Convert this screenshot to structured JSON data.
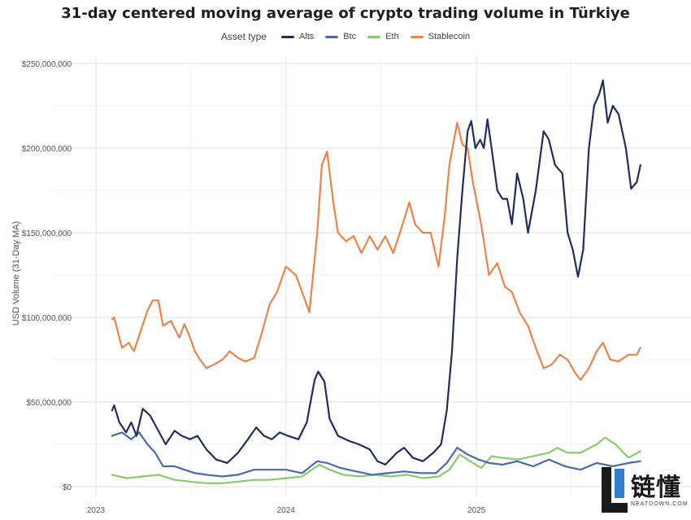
{
  "chart_data": {
    "type": "line",
    "title": "31-day centered moving average of crypto trading volume in Türkiye",
    "xlabel": "",
    "ylabel": "USD Volume (31-Day MA)",
    "legend": {
      "title": "Asset type",
      "placement": "top"
    },
    "x_ticks": [
      "2023",
      "2024",
      "2025"
    ],
    "y_ticks": [
      "$0",
      "$50,000,000",
      "$100,000,000",
      "$150,000,000",
      "$200,000,000",
      "$250,000,000"
    ],
    "ylim": [
      0,
      250000000
    ],
    "grid": true,
    "series": [
      {
        "name": "Alts",
        "color": "#1f2e5e",
        "points": [
          [
            "2023-02-01",
            45
          ],
          [
            "2023-02-05",
            48
          ],
          [
            "2023-02-15",
            38
          ],
          [
            "2023-02-28",
            32
          ],
          [
            "2023-03-10",
            38
          ],
          [
            "2023-03-20",
            30
          ],
          [
            "2023-04-01",
            46
          ],
          [
            "2023-04-15",
            42
          ],
          [
            "2023-05-01",
            33
          ],
          [
            "2023-05-15",
            25
          ],
          [
            "2023-06-01",
            33
          ],
          [
            "2023-06-15",
            30
          ],
          [
            "2023-07-01",
            28
          ],
          [
            "2023-07-15",
            30
          ],
          [
            "2023-08-01",
            22
          ],
          [
            "2023-08-20",
            16
          ],
          [
            "2023-09-10",
            14
          ],
          [
            "2023-10-01",
            20
          ],
          [
            "2023-10-20",
            28
          ],
          [
            "2023-11-05",
            35
          ],
          [
            "2023-11-20",
            30
          ],
          [
            "2023-12-05",
            28
          ],
          [
            "2023-12-20",
            32
          ],
          [
            "2024-01-05",
            30
          ],
          [
            "2024-01-25",
            28
          ],
          [
            "2024-02-10",
            38
          ],
          [
            "2024-02-25",
            63
          ],
          [
            "2024-03-03",
            68
          ],
          [
            "2024-03-15",
            62
          ],
          [
            "2024-03-25",
            40
          ],
          [
            "2024-04-10",
            30
          ],
          [
            "2024-05-01",
            27
          ],
          [
            "2024-05-20",
            25
          ],
          [
            "2024-06-10",
            22
          ],
          [
            "2024-06-25",
            15
          ],
          [
            "2024-07-10",
            13
          ],
          [
            "2024-08-01",
            20
          ],
          [
            "2024-08-15",
            23
          ],
          [
            "2024-09-01",
            17
          ],
          [
            "2024-09-20",
            15
          ],
          [
            "2024-10-10",
            20
          ],
          [
            "2024-10-25",
            25
          ],
          [
            "2024-11-05",
            45
          ],
          [
            "2024-11-15",
            80
          ],
          [
            "2024-11-25",
            135
          ],
          [
            "2024-12-05",
            175
          ],
          [
            "2024-12-15",
            210
          ],
          [
            "2024-12-22",
            216
          ],
          [
            "2024-12-30",
            200
          ],
          [
            "2025-01-08",
            205
          ],
          [
            "2025-01-15",
            200
          ],
          [
            "2025-01-22",
            217
          ],
          [
            "2025-01-30",
            200
          ],
          [
            "2025-02-10",
            175
          ],
          [
            "2025-02-20",
            170
          ],
          [
            "2025-03-01",
            170
          ],
          [
            "2025-03-10",
            155
          ],
          [
            "2025-03-20",
            185
          ],
          [
            "2025-04-01",
            170
          ],
          [
            "2025-04-10",
            150
          ],
          [
            "2025-04-25",
            175
          ],
          [
            "2025-05-10",
            210
          ],
          [
            "2025-05-20",
            205
          ],
          [
            "2025-06-01",
            190
          ],
          [
            "2025-06-15",
            185
          ],
          [
            "2025-06-25",
            150
          ],
          [
            "2025-07-05",
            140
          ],
          [
            "2025-07-15",
            124
          ],
          [
            "2025-07-25",
            140
          ],
          [
            "2025-08-05",
            200
          ],
          [
            "2025-08-15",
            225
          ],
          [
            "2025-08-25",
            232
          ],
          [
            "2025-09-01",
            240
          ],
          [
            "2025-09-10",
            215
          ],
          [
            "2025-09-20",
            225
          ],
          [
            "2025-10-01",
            220
          ],
          [
            "2025-10-15",
            200
          ],
          [
            "2025-10-25",
            176
          ],
          [
            "2025-11-05",
            180
          ],
          [
            "2025-11-12",
            190
          ]
        ]
      },
      {
        "name": "Btc",
        "color": "#4a6aaa",
        "points": [
          [
            "2023-02-01",
            30
          ],
          [
            "2023-02-20",
            32
          ],
          [
            "2023-03-10",
            28
          ],
          [
            "2023-03-25",
            32
          ],
          [
            "2023-04-10",
            25
          ],
          [
            "2023-04-25",
            20
          ],
          [
            "2023-05-10",
            12
          ],
          [
            "2023-06-01",
            12
          ],
          [
            "2023-06-20",
            10
          ],
          [
            "2023-07-10",
            8
          ],
          [
            "2023-08-01",
            7
          ],
          [
            "2023-09-01",
            6
          ],
          [
            "2023-10-01",
            7
          ],
          [
            "2023-11-01",
            10
          ],
          [
            "2023-12-01",
            10
          ],
          [
            "2024-01-01",
            10
          ],
          [
            "2024-02-01",
            8
          ],
          [
            "2024-03-01",
            15
          ],
          [
            "2024-03-20",
            14
          ],
          [
            "2024-04-15",
            11
          ],
          [
            "2024-05-15",
            9
          ],
          [
            "2024-06-15",
            7
          ],
          [
            "2024-07-15",
            8
          ],
          [
            "2024-08-15",
            9
          ],
          [
            "2024-09-15",
            8
          ],
          [
            "2024-10-15",
            8
          ],
          [
            "2024-11-05",
            14
          ],
          [
            "2024-11-25",
            23
          ],
          [
            "2024-12-15",
            19
          ],
          [
            "2025-01-05",
            16
          ],
          [
            "2025-01-25",
            14
          ],
          [
            "2025-02-20",
            13
          ],
          [
            "2025-03-20",
            15
          ],
          [
            "2025-04-20",
            12
          ],
          [
            "2025-05-20",
            16
          ],
          [
            "2025-06-20",
            12
          ],
          [
            "2025-07-20",
            10
          ],
          [
            "2025-08-20",
            14
          ],
          [
            "2025-09-20",
            12
          ],
          [
            "2025-10-20",
            14
          ],
          [
            "2025-11-12",
            15
          ]
        ]
      },
      {
        "name": "Eth",
        "color": "#86cc6a",
        "points": [
          [
            "2023-02-01",
            7
          ],
          [
            "2023-03-01",
            5
          ],
          [
            "2023-04-01",
            6
          ],
          [
            "2023-05-01",
            7
          ],
          [
            "2023-06-01",
            4
          ],
          [
            "2023-07-01",
            3
          ],
          [
            "2023-08-01",
            2
          ],
          [
            "2023-09-01",
            2
          ],
          [
            "2023-10-01",
            3
          ],
          [
            "2023-11-01",
            4
          ],
          [
            "2023-12-01",
            4
          ],
          [
            "2024-01-01",
            5
          ],
          [
            "2024-02-01",
            6
          ],
          [
            "2024-03-05",
            13
          ],
          [
            "2024-03-25",
            10
          ],
          [
            "2024-04-20",
            7
          ],
          [
            "2024-05-20",
            6
          ],
          [
            "2024-06-20",
            7
          ],
          [
            "2024-07-20",
            6
          ],
          [
            "2024-08-20",
            7
          ],
          [
            "2024-09-20",
            5
          ],
          [
            "2024-10-20",
            6
          ],
          [
            "2024-11-10",
            10
          ],
          [
            "2024-11-30",
            19
          ],
          [
            "2024-12-20",
            15
          ],
          [
            "2025-01-10",
            11
          ],
          [
            "2025-01-30",
            18
          ],
          [
            "2025-02-20",
            17
          ],
          [
            "2025-03-20",
            16
          ],
          [
            "2025-04-20",
            18
          ],
          [
            "2025-05-20",
            20
          ],
          [
            "2025-06-05",
            23
          ],
          [
            "2025-06-25",
            20
          ],
          [
            "2025-07-20",
            20
          ],
          [
            "2025-08-20",
            25
          ],
          [
            "2025-09-05",
            29
          ],
          [
            "2025-09-25",
            25
          ],
          [
            "2025-10-20",
            17
          ],
          [
            "2025-11-12",
            21
          ]
        ]
      },
      {
        "name": "Stablecoin",
        "color": "#ee8349",
        "points": [
          [
            "2023-02-01",
            99
          ],
          [
            "2023-02-05",
            100
          ],
          [
            "2023-02-20",
            82
          ],
          [
            "2023-03-05",
            85
          ],
          [
            "2023-03-15",
            80
          ],
          [
            "2023-03-28",
            92
          ],
          [
            "2023-04-10",
            104
          ],
          [
            "2023-04-20",
            110
          ],
          [
            "2023-05-01",
            110
          ],
          [
            "2023-05-10",
            95
          ],
          [
            "2023-05-25",
            98
          ],
          [
            "2023-06-10",
            88
          ],
          [
            "2023-06-20",
            96
          ],
          [
            "2023-07-01",
            88
          ],
          [
            "2023-07-10",
            80
          ],
          [
            "2023-07-20",
            75
          ],
          [
            "2023-08-01",
            70
          ],
          [
            "2023-08-15",
            72
          ],
          [
            "2023-09-01",
            75
          ],
          [
            "2023-09-15",
            80
          ],
          [
            "2023-10-01",
            76
          ],
          [
            "2023-10-15",
            74
          ],
          [
            "2023-11-01",
            76
          ],
          [
            "2023-11-15",
            90
          ],
          [
            "2023-12-01",
            108
          ],
          [
            "2023-12-15",
            115
          ],
          [
            "2024-01-01",
            130
          ],
          [
            "2024-01-20",
            125
          ],
          [
            "2024-02-01",
            115
          ],
          [
            "2024-02-15",
            103
          ],
          [
            "2024-03-01",
            150
          ],
          [
            "2024-03-10",
            190
          ],
          [
            "2024-03-20",
            198
          ],
          [
            "2024-04-01",
            168
          ],
          [
            "2024-04-10",
            150
          ],
          [
            "2024-04-25",
            145
          ],
          [
            "2024-05-10",
            148
          ],
          [
            "2024-05-25",
            138
          ],
          [
            "2024-06-10",
            148
          ],
          [
            "2024-06-25",
            140
          ],
          [
            "2024-07-10",
            148
          ],
          [
            "2024-07-25",
            138
          ],
          [
            "2024-08-10",
            153
          ],
          [
            "2024-08-25",
            168
          ],
          [
            "2024-09-05",
            155
          ],
          [
            "2024-09-20",
            150
          ],
          [
            "2024-10-05",
            150
          ],
          [
            "2024-10-20",
            130
          ],
          [
            "2024-11-01",
            160
          ],
          [
            "2024-11-10",
            190
          ],
          [
            "2024-11-25",
            215
          ],
          [
            "2024-12-05",
            202
          ],
          [
            "2024-12-15",
            200
          ],
          [
            "2024-12-25",
            180
          ],
          [
            "2025-01-10",
            155
          ],
          [
            "2025-01-25",
            125
          ],
          [
            "2025-02-10",
            132
          ],
          [
            "2025-02-25",
            118
          ],
          [
            "2025-03-10",
            115
          ],
          [
            "2025-03-25",
            103
          ],
          [
            "2025-04-10",
            95
          ],
          [
            "2025-04-25",
            82
          ],
          [
            "2025-05-10",
            70
          ],
          [
            "2025-05-25",
            72
          ],
          [
            "2025-06-10",
            78
          ],
          [
            "2025-06-25",
            75
          ],
          [
            "2025-07-10",
            67
          ],
          [
            "2025-07-20",
            63
          ],
          [
            "2025-08-05",
            70
          ],
          [
            "2025-08-20",
            80
          ],
          [
            "2025-09-01",
            85
          ],
          [
            "2025-09-15",
            75
          ],
          [
            "2025-10-01",
            74
          ],
          [
            "2025-10-20",
            78
          ],
          [
            "2025-11-05",
            78
          ],
          [
            "2025-11-12",
            82
          ]
        ]
      }
    ]
  },
  "watermark": {
    "logo_text": "链懂",
    "sub_text": "NEATDOWN.COM"
  }
}
